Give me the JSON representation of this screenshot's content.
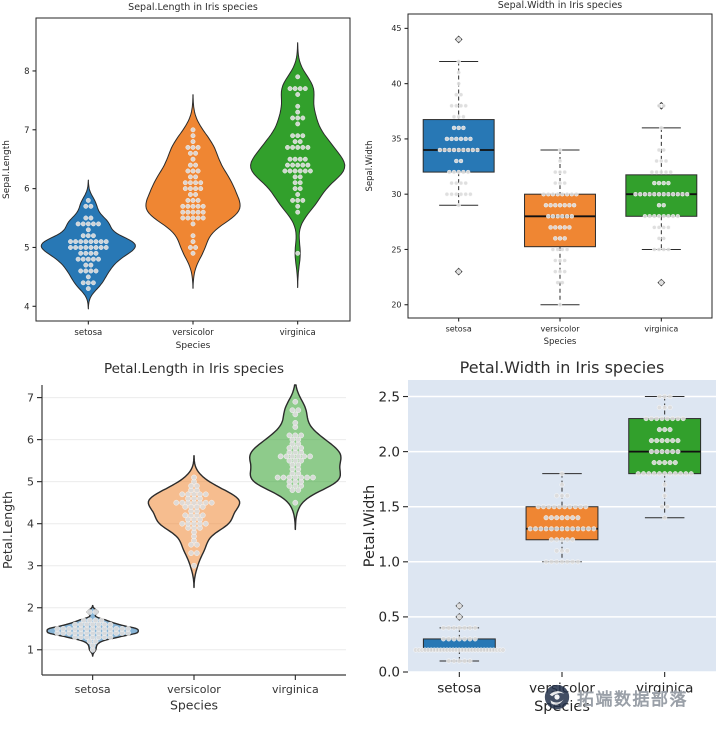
{
  "watermark": {
    "text": "拓端数据部落"
  },
  "chart_data": {
    "figure": "Iris dataset distribution plots (2x2 grid)",
    "categories": [
      "setosa",
      "versicolor",
      "virginica"
    ],
    "category_colors": {
      "setosa": "#2878b5",
      "versicolor": "#ef8633",
      "virginica": "#32a02c"
    },
    "point_color": "#dcdcdc",
    "charts": [
      {
        "type": "violin",
        "title": "Sepal.Length in Iris species",
        "xlabel": "Species",
        "ylabel": "Sepal.Length",
        "ylim": [
          3.75,
          8.9
        ],
        "yticks": [
          4,
          5,
          6,
          7,
          8
        ],
        "ytick_labels": [
          "4",
          "5",
          "6",
          "7",
          "8"
        ],
        "values": {
          "setosa": [
            5.1,
            4.9,
            4.7,
            4.6,
            5.0,
            5.4,
            4.6,
            5.0,
            4.4,
            4.9,
            5.4,
            4.8,
            4.8,
            4.3,
            5.8,
            5.7,
            5.4,
            5.1,
            5.7,
            5.1,
            5.4,
            5.1,
            4.6,
            5.1,
            4.8,
            5.0,
            5.0,
            5.2,
            5.2,
            4.7,
            4.8,
            5.4,
            5.2,
            5.5,
            4.9,
            5.0,
            5.5,
            4.9,
            4.4,
            5.1,
            5.0,
            4.5,
            4.4,
            5.0,
            5.1,
            4.8,
            5.1,
            4.6,
            5.3,
            5.0
          ],
          "versicolor": [
            7.0,
            6.4,
            6.9,
            5.5,
            6.5,
            5.7,
            6.3,
            4.9,
            6.6,
            5.2,
            5.0,
            5.9,
            6.0,
            6.1,
            5.6,
            6.7,
            5.6,
            5.8,
            6.2,
            5.6,
            5.9,
            6.1,
            6.3,
            6.1,
            6.4,
            6.6,
            6.8,
            6.7,
            6.0,
            5.7,
            5.5,
            5.5,
            5.8,
            6.0,
            5.4,
            6.0,
            6.7,
            6.3,
            5.6,
            5.5,
            5.5,
            6.1,
            5.8,
            5.0,
            5.6,
            5.7,
            5.7,
            6.2,
            5.1,
            5.7
          ],
          "virginica": [
            6.3,
            5.8,
            7.1,
            6.3,
            6.5,
            7.6,
            4.9,
            7.3,
            6.7,
            7.2,
            6.5,
            6.4,
            6.8,
            5.7,
            5.8,
            6.4,
            6.5,
            7.7,
            7.7,
            6.0,
            6.9,
            5.6,
            7.7,
            6.3,
            6.7,
            7.2,
            6.2,
            6.1,
            6.4,
            7.2,
            7.4,
            7.9,
            6.4,
            6.3,
            6.1,
            7.7,
            6.3,
            6.4,
            6.0,
            6.9,
            6.7,
            6.9,
            5.8,
            6.8,
            6.7,
            6.7,
            6.3,
            6.5,
            6.2,
            5.9
          ]
        }
      },
      {
        "type": "box",
        "title": "Sepal.Width in Iris species",
        "xlabel": "Species",
        "ylabel": "Sepal.Width",
        "ylim": [
          18.8,
          46.3
        ],
        "yticks": [
          20,
          25,
          30,
          35,
          40,
          45
        ],
        "ytick_labels": [
          "20",
          "25",
          "30",
          "35",
          "40",
          "45"
        ],
        "values": {
          "setosa": [
            35,
            30,
            32,
            31,
            36,
            39,
            34,
            34,
            29,
            31,
            37,
            34,
            30,
            30,
            40,
            44,
            39,
            35,
            38,
            38,
            34,
            37,
            36,
            33,
            34,
            30,
            34,
            35,
            34,
            32,
            31,
            34,
            41,
            42,
            31,
            32,
            35,
            36,
            30,
            34,
            35,
            23,
            32,
            35,
            38,
            30,
            38,
            32,
            37,
            33
          ],
          "versicolor": [
            32,
            32,
            31,
            23,
            28,
            28,
            33,
            24,
            29,
            27,
            20,
            30,
            22,
            29,
            29,
            31,
            30,
            27,
            22,
            25,
            32,
            28,
            25,
            28,
            29,
            30,
            28,
            30,
            29,
            26,
            24,
            24,
            27,
            27,
            30,
            34,
            31,
            23,
            30,
            25,
            26,
            30,
            26,
            23,
            27,
            30,
            29,
            29,
            25,
            28
          ],
          "virginica": [
            33,
            27,
            30,
            29,
            30,
            30,
            25,
            29,
            25,
            36,
            32,
            27,
            30,
            25,
            28,
            32,
            30,
            38,
            26,
            22,
            32,
            28,
            28,
            27,
            33,
            32,
            28,
            30,
            28,
            30,
            28,
            38,
            28,
            28,
            26,
            30,
            34,
            31,
            30,
            31,
            31,
            31,
            27,
            32,
            33,
            30,
            25,
            30,
            34,
            30
          ]
        }
      },
      {
        "type": "violin",
        "title": "Petal.Length in Iris species",
        "xlabel": "Species",
        "ylabel": "Petal.Length",
        "ylim": [
          0.4,
          7.3
        ],
        "yticks": [
          1,
          2,
          3,
          4,
          5,
          6,
          7
        ],
        "ytick_labels": [
          "1",
          "2",
          "3",
          "4",
          "5",
          "6",
          "7"
        ],
        "values": {
          "setosa": [
            1.4,
            1.4,
            1.3,
            1.5,
            1.4,
            1.7,
            1.4,
            1.5,
            1.4,
            1.5,
            1.5,
            1.6,
            1.4,
            1.1,
            1.2,
            1.5,
            1.3,
            1.4,
            1.7,
            1.5,
            1.7,
            1.5,
            1.0,
            1.7,
            1.9,
            1.6,
            1.6,
            1.5,
            1.4,
            1.6,
            1.6,
            1.5,
            1.5,
            1.4,
            1.5,
            1.2,
            1.3,
            1.4,
            1.3,
            1.5,
            1.3,
            1.3,
            1.3,
            1.6,
            1.9,
            1.4,
            1.6,
            1.4,
            1.5,
            1.4
          ],
          "versicolor": [
            4.7,
            4.5,
            4.9,
            4.0,
            4.6,
            4.5,
            4.7,
            3.3,
            4.6,
            3.9,
            3.5,
            4.2,
            4.0,
            4.7,
            3.6,
            4.4,
            4.5,
            4.1,
            4.5,
            3.9,
            4.8,
            4.0,
            4.9,
            4.7,
            4.3,
            4.4,
            4.8,
            5.0,
            4.5,
            3.5,
            3.8,
            3.7,
            3.9,
            5.1,
            4.5,
            4.5,
            4.7,
            4.4,
            4.1,
            4.0,
            4.4,
            4.6,
            4.0,
            3.3,
            4.2,
            4.2,
            4.2,
            4.3,
            3.0,
            4.1
          ],
          "virginica": [
            6.0,
            5.1,
            5.9,
            5.6,
            5.8,
            6.6,
            4.5,
            6.3,
            5.8,
            6.1,
            5.1,
            5.3,
            5.5,
            5.0,
            5.1,
            5.3,
            5.5,
            6.7,
            6.9,
            5.0,
            5.7,
            4.9,
            6.7,
            4.9,
            5.7,
            6.0,
            4.8,
            4.9,
            5.6,
            5.8,
            6.1,
            6.4,
            5.6,
            5.1,
            5.6,
            6.1,
            5.6,
            5.5,
            4.8,
            5.4,
            5.6,
            5.1,
            5.1,
            5.9,
            5.7,
            5.2,
            5.0,
            5.2,
            5.4,
            5.1
          ]
        }
      },
      {
        "type": "box",
        "title": "Petal.Width in Iris species",
        "xlabel": "Species",
        "ylabel": "Petal.Width",
        "ylim": [
          0,
          2.65
        ],
        "yticks": [
          0,
          0.5,
          1.0,
          1.5,
          2.0,
          2.5
        ],
        "ytick_labels": [
          "0.0",
          "0.5",
          "1.0",
          "1.5",
          "2.0",
          "2.5"
        ],
        "values": {
          "setosa": [
            0.2,
            0.2,
            0.2,
            0.2,
            0.2,
            0.4,
            0.3,
            0.2,
            0.2,
            0.1,
            0.2,
            0.2,
            0.1,
            0.1,
            0.2,
            0.4,
            0.4,
            0.3,
            0.3,
            0.3,
            0.2,
            0.4,
            0.2,
            0.5,
            0.2,
            0.2,
            0.4,
            0.2,
            0.2,
            0.2,
            0.2,
            0.4,
            0.1,
            0.2,
            0.2,
            0.2,
            0.2,
            0.1,
            0.2,
            0.2,
            0.3,
            0.3,
            0.2,
            0.6,
            0.4,
            0.3,
            0.2,
            0.2,
            0.2,
            0.2
          ],
          "versicolor": [
            1.4,
            1.5,
            1.5,
            1.3,
            1.5,
            1.3,
            1.6,
            1.0,
            1.3,
            1.4,
            1.0,
            1.5,
            1.0,
            1.4,
            1.3,
            1.4,
            1.5,
            1.0,
            1.5,
            1.1,
            1.8,
            1.3,
            1.5,
            1.2,
            1.3,
            1.4,
            1.4,
            1.7,
            1.5,
            1.0,
            1.1,
            1.0,
            1.2,
            1.6,
            1.5,
            1.6,
            1.5,
            1.3,
            1.3,
            1.3,
            1.2,
            1.4,
            1.2,
            1.0,
            1.3,
            1.2,
            1.3,
            1.3,
            1.1,
            1.3
          ],
          "virginica": [
            2.5,
            1.9,
            2.1,
            1.8,
            2.2,
            2.1,
            1.7,
            1.8,
            1.8,
            2.5,
            2.0,
            1.9,
            2.1,
            2.0,
            2.4,
            2.3,
            1.8,
            2.2,
            2.3,
            1.5,
            2.3,
            2.0,
            2.0,
            1.8,
            2.1,
            1.8,
            1.8,
            1.8,
            2.1,
            1.6,
            1.9,
            2.0,
            2.2,
            1.5,
            1.4,
            2.3,
            2.4,
            1.8,
            1.8,
            2.1,
            2.4,
            2.3,
            1.9,
            2.3,
            2.5,
            2.3,
            1.9,
            2.0,
            2.3,
            1.8
          ]
        }
      }
    ]
  }
}
